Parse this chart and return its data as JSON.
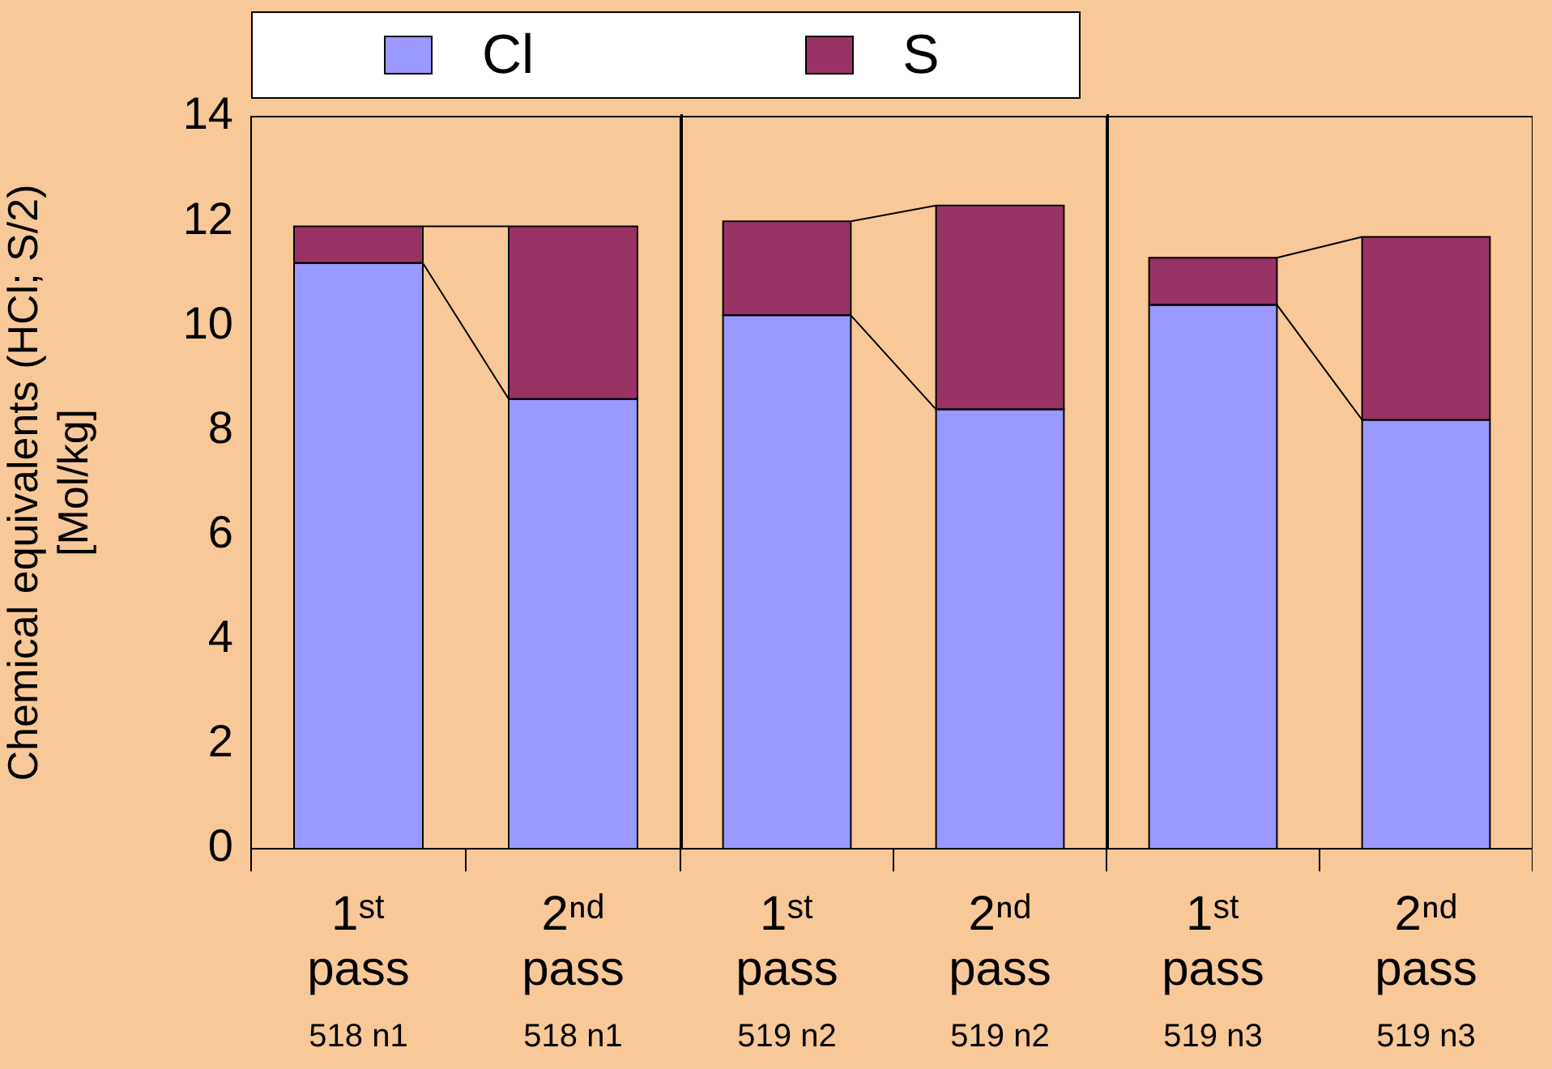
{
  "chart_data": [
    {
      "type": "bar",
      "stacked": true,
      "legend": "top",
      "ylabel": "Chemical equivalents (HCl; S/2)\n[Mol/kg]",
      "categories": [
        "1ˢᵗ\npass\n518 n1",
        "2ⁿᵈ\npass\n518 n1"
      ],
      "ylim": [
        0,
        14
      ],
      "yticks": [
        0,
        2,
        4,
        6,
        8,
        10,
        12,
        14
      ],
      "series": [
        {
          "name": "Cl",
          "color": "#9999ff",
          "values": [
            11.2,
            8.6
          ]
        },
        {
          "name": "S",
          "color": "#993366",
          "values": [
            0.7,
            3.3
          ]
        }
      ]
    },
    {
      "type": "bar",
      "stacked": true,
      "tick_labels": "x",
      "categories": [
        "1ˢᵗ\npass\n519 n2",
        "2ⁿᵈ\npass\n519 n2"
      ],
      "ylim": [
        0,
        14
      ],
      "series": [
        {
          "color": "#9999ff",
          "values": [
            10.2,
            8.4
          ]
        },
        {
          "color": "#993366",
          "values": [
            1.8,
            3.9
          ]
        }
      ]
    },
    {
      "type": "bar",
      "stacked": true,
      "tick_labels": "x",
      "categories": [
        "1ˢᵗ\npass\n519 n3",
        "2ⁿᵈ\npass\n519 n3"
      ],
      "ylim": [
        0,
        14
      ],
      "series": [
        {
          "color": "#9999ff",
          "values": [
            10.4,
            8.2
          ]
        },
        {
          "color": "#993366",
          "values": [
            0.9,
            3.5
          ]
        }
      ]
    }
  ]
}
